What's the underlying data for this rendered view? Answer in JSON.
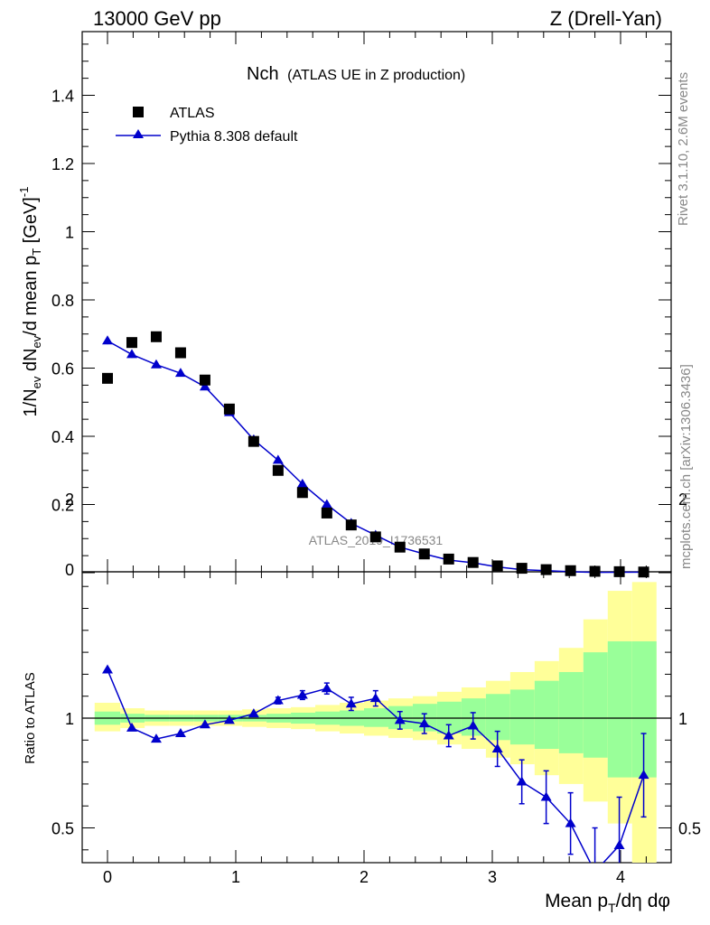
{
  "header": {
    "left": "13000 GeV pp",
    "right": "Z (Drell-Yan)"
  },
  "plot_title": {
    "main": "Nch",
    "sub": "(ATLAS UE in Z production)"
  },
  "side": {
    "rivet": "Rivet 3.1.10,  2.6M events",
    "mcplots": "mcplots.cern.ch [arXiv:1306.3436]"
  },
  "watermark": "ATLAS_2019_I1736531",
  "colors": {
    "data": "#000000",
    "mc": "#0000cc",
    "band_inner": "#99ff99",
    "band_outer": "#ffff99"
  },
  "chart_data": [
    {
      "type": "scatter",
      "title": "Nch (ATLAS UE in Z production)",
      "xlabel": "Mean pT/dη dφ",
      "ylabel": "1/Nev dNev/d mean pT [GeV]^-1",
      "xlim": [
        -0.2,
        4.35
      ],
      "ylim": [
        0,
        1.58
      ],
      "yticks": [
        0,
        0.2,
        0.4,
        0.6,
        0.8,
        1,
        1.2,
        1.4
      ],
      "ytick_labels": [
        "0",
        "0.2",
        "0.4",
        "0.6",
        "0.8",
        "1",
        "1.2",
        "1.4"
      ],
      "legend": "top-left",
      "series": [
        {
          "name": "ATLAS",
          "marker": "square",
          "x": [
            0,
            0.19,
            0.38,
            0.57,
            0.76,
            0.95,
            1.14,
            1.33,
            1.52,
            1.71,
            1.9,
            2.09,
            2.28,
            2.47,
            2.66,
            2.85,
            3.04,
            3.23,
            3.42,
            3.61,
            3.8,
            3.99,
            4.18
          ],
          "y": [
            0.57,
            0.675,
            0.692,
            0.645,
            0.565,
            0.48,
            0.385,
            0.3,
            0.235,
            0.175,
            0.14,
            0.105,
            0.075,
            0.055,
            0.04,
            0.03,
            0.02,
            0.013,
            0.009,
            0.006,
            0.004,
            0.003,
            0.002
          ]
        },
        {
          "name": "Pythia 8.308 default",
          "marker": "triangle",
          "x": [
            0,
            0.19,
            0.38,
            0.57,
            0.76,
            0.95,
            1.14,
            1.33,
            1.52,
            1.71,
            1.9,
            2.09,
            2.28,
            2.47,
            2.66,
            2.85,
            3.04,
            3.23,
            3.42,
            3.61,
            3.8,
            3.99,
            4.18
          ],
          "y": [
            0.68,
            0.64,
            0.61,
            0.585,
            0.545,
            0.47,
            0.39,
            0.33,
            0.26,
            0.2,
            0.145,
            0.11,
            0.075,
            0.055,
            0.037,
            0.029,
            0.017,
            0.009,
            0.006,
            0.003,
            0.001,
            0.0013,
            0.0015
          ],
          "err": [
            0.01,
            0.01,
            0.01,
            0.008,
            0.008,
            0.007,
            0.006,
            0.006,
            0.005,
            0.004,
            0.004,
            0.003,
            0.003,
            0.002,
            0.002,
            0.002,
            0.001,
            0.001,
            0.001,
            0.001,
            0.001,
            0.001,
            0.001
          ]
        }
      ]
    },
    {
      "type": "line",
      "ylabel": "Ratio to ATLAS",
      "xlabel": "Mean pT/dη dφ",
      "xlim": [
        -0.2,
        4.35
      ],
      "ylim": [
        0.35,
        2.25
      ],
      "xticks": [
        0,
        1,
        2,
        3,
        4
      ],
      "xtick_labels": [
        "0",
        "1",
        "2",
        "3",
        "4"
      ],
      "yticks": [
        0.5,
        1,
        2
      ],
      "ytick_labels": [
        "0.5",
        "1",
        "2"
      ],
      "bands": {
        "edges": [
          -0.1,
          0.1,
          0.29,
          0.48,
          0.67,
          0.86,
          1.05,
          1.24,
          1.43,
          1.62,
          1.81,
          2.0,
          2.19,
          2.38,
          2.57,
          2.76,
          2.95,
          3.14,
          3.33,
          3.52,
          3.71,
          3.9,
          4.09,
          4.28
        ],
        "inner_lo": [
          0.97,
          0.98,
          0.985,
          0.985,
          0.985,
          0.985,
          0.985,
          0.98,
          0.975,
          0.97,
          0.965,
          0.96,
          0.95,
          0.94,
          0.93,
          0.92,
          0.9,
          0.88,
          0.86,
          0.84,
          0.82,
          0.73,
          0.73
        ],
        "inner_hi": [
          1.03,
          1.02,
          1.015,
          1.015,
          1.015,
          1.015,
          1.015,
          1.02,
          1.025,
          1.03,
          1.035,
          1.045,
          1.055,
          1.065,
          1.075,
          1.09,
          1.11,
          1.13,
          1.17,
          1.21,
          1.3,
          1.35,
          1.35
        ],
        "outer_lo": [
          0.94,
          0.955,
          0.965,
          0.965,
          0.965,
          0.965,
          0.96,
          0.955,
          0.95,
          0.94,
          0.93,
          0.92,
          0.91,
          0.9,
          0.88,
          0.86,
          0.82,
          0.79,
          0.74,
          0.7,
          0.62,
          0.52,
          0.33
        ],
        "outer_hi": [
          1.07,
          1.045,
          1.035,
          1.035,
          1.035,
          1.035,
          1.04,
          1.045,
          1.05,
          1.06,
          1.07,
          1.08,
          1.09,
          1.1,
          1.12,
          1.14,
          1.17,
          1.21,
          1.26,
          1.32,
          1.45,
          1.58,
          1.62
        ]
      },
      "series": [
        {
          "name": "Pythia 8.308 default",
          "x": [
            0,
            0.19,
            0.38,
            0.57,
            0.76,
            0.95,
            1.14,
            1.33,
            1.52,
            1.71,
            1.9,
            2.09,
            2.28,
            2.47,
            2.66,
            2.85,
            3.04,
            3.23,
            3.42,
            3.61,
            3.8,
            3.99,
            4.18
          ],
          "y": [
            1.22,
            0.955,
            0.905,
            0.93,
            0.97,
            0.99,
            1.02,
            1.08,
            1.105,
            1.135,
            1.065,
            1.09,
            0.99,
            0.975,
            0.92,
            0.965,
            0.86,
            0.71,
            0.64,
            0.52,
            0.3,
            0.42,
            0.74
          ],
          "err": [
            0.012,
            0.01,
            0.01,
            0.01,
            0.01,
            0.01,
            0.012,
            0.015,
            0.02,
            0.025,
            0.03,
            0.035,
            0.04,
            0.045,
            0.05,
            0.06,
            0.08,
            0.1,
            0.12,
            0.14,
            0.2,
            0.22,
            0.19
          ]
        }
      ]
    }
  ]
}
